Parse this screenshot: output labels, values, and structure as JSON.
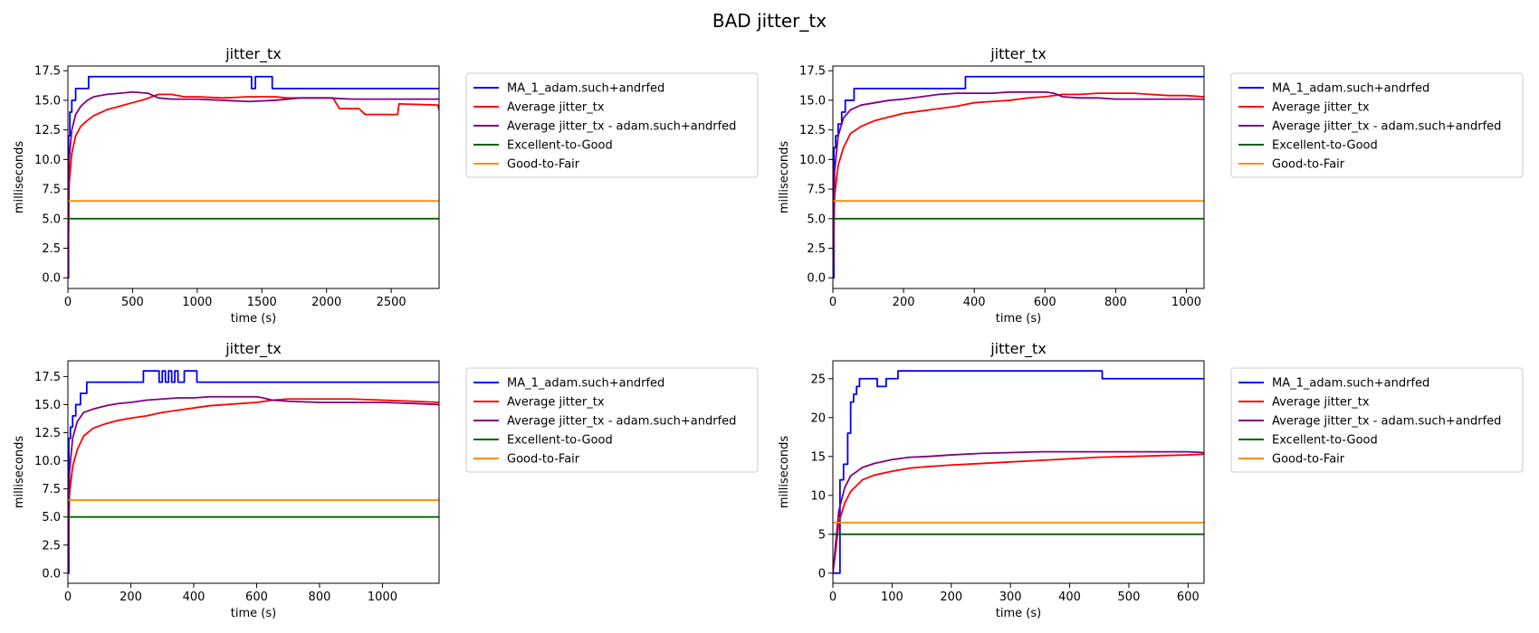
{
  "figure": {
    "title": "BAD jitter_tx"
  },
  "colors": {
    "MA": "#0000ff",
    "avg": "#ff0000",
    "avg_user": "#800080",
    "excellent_good": "#006400",
    "good_fair": "#ff8c00"
  },
  "chart_data": [
    {
      "type": "line",
      "title": "jitter_tx",
      "xlabel": "time (s)",
      "ylabel": "milliseconds",
      "xlim": [
        0,
        2870
      ],
      "ylim": [
        -0.9,
        17.9
      ],
      "xticks": [
        0,
        500,
        1000,
        1500,
        2000,
        2500
      ],
      "yticks": [
        0.0,
        2.5,
        5.0,
        7.5,
        10.0,
        12.5,
        15.0,
        17.5
      ],
      "ytick_labels": [
        "0.0",
        "2.5",
        "5.0",
        "7.5",
        "10.0",
        "12.5",
        "15.0",
        "17.5"
      ],
      "legend": {
        "placement": "outside-right"
      },
      "series": [
        {
          "name": "MA_1_adam.such+andrfed",
          "color": "#0000ff",
          "step": true,
          "x": [
            0,
            5,
            15,
            30,
            60,
            160,
            1420,
            1450,
            1580,
            1600,
            2870
          ],
          "y": [
            0,
            12,
            14,
            15,
            16,
            17,
            16,
            17,
            16,
            16,
            16
          ]
        },
        {
          "name": "Average jitter_tx",
          "color": "#ff0000",
          "x": [
            0,
            10,
            30,
            60,
            100,
            150,
            200,
            300,
            400,
            500,
            600,
            700,
            800,
            900,
            1000,
            1200,
            1400,
            1600,
            1700,
            1800,
            1900,
            2050,
            2100,
            2250,
            2300,
            2550,
            2560,
            2860,
            2870
          ],
          "y": [
            0,
            8,
            10.5,
            12,
            12.8,
            13.3,
            13.7,
            14.2,
            14.5,
            14.8,
            15.1,
            15.5,
            15.5,
            15.3,
            15.3,
            15.2,
            15.3,
            15.3,
            15.2,
            15.2,
            15.2,
            15.2,
            14.3,
            14.3,
            13.8,
            13.8,
            14.7,
            14.6,
            14.2
          ]
        },
        {
          "name": "Average jitter_tx - adam.such+andrfed",
          "color": "#800080",
          "x": [
            0,
            10,
            30,
            60,
            100,
            150,
            200,
            300,
            400,
            500,
            620,
            700,
            800,
            1000,
            1200,
            1400,
            1600,
            1800,
            2000,
            2200,
            2400,
            2600,
            2870
          ],
          "y": [
            0,
            10,
            12.5,
            13.8,
            14.5,
            15.0,
            15.3,
            15.5,
            15.6,
            15.7,
            15.6,
            15.2,
            15.1,
            15.1,
            15.0,
            14.9,
            15.0,
            15.2,
            15.2,
            15.1,
            15.1,
            15.1,
            15.1
          ]
        },
        {
          "name": "Excellent-to-Good",
          "color": "#006400",
          "x": [
            0,
            2870
          ],
          "y": [
            5,
            5
          ]
        },
        {
          "name": "Good-to-Fair",
          "color": "#ff8c00",
          "x": [
            0,
            2870
          ],
          "y": [
            6.5,
            6.5
          ]
        }
      ]
    },
    {
      "type": "line",
      "title": "jitter_tx",
      "xlabel": "time (s)",
      "ylabel": "milliseconds",
      "xlim": [
        0,
        1050
      ],
      "ylim": [
        -0.9,
        17.9
      ],
      "xticks": [
        0,
        200,
        400,
        600,
        800,
        1000
      ],
      "yticks": [
        0.0,
        2.5,
        5.0,
        7.5,
        10.0,
        12.5,
        15.0,
        17.5
      ],
      "ytick_labels": [
        "0.0",
        "2.5",
        "5.0",
        "7.5",
        "10.0",
        "12.5",
        "15.0",
        "17.5"
      ],
      "legend": {
        "placement": "outside-right"
      },
      "series": [
        {
          "name": "MA_1_adam.such+andrfed",
          "color": "#0000ff",
          "step": true,
          "x": [
            0,
            3,
            8,
            15,
            25,
            35,
            60,
            375,
            1050
          ],
          "y": [
            0,
            11,
            12,
            13,
            14,
            15,
            16,
            17,
            17
          ]
        },
        {
          "name": "Average jitter_tx",
          "color": "#ff0000",
          "x": [
            0,
            5,
            15,
            30,
            50,
            80,
            120,
            160,
            200,
            250,
            300,
            350,
            400,
            450,
            500,
            550,
            600,
            650,
            700,
            750,
            800,
            850,
            900,
            950,
            1000,
            1050
          ],
          "y": [
            0,
            7,
            9.5,
            11,
            12.2,
            12.8,
            13.3,
            13.6,
            13.9,
            14.1,
            14.3,
            14.5,
            14.8,
            14.9,
            15.0,
            15.2,
            15.3,
            15.5,
            15.5,
            15.6,
            15.6,
            15.6,
            15.5,
            15.4,
            15.4,
            15.3
          ]
        },
        {
          "name": "Average jitter_tx - adam.such+andrfed",
          "color": "#800080",
          "x": [
            0,
            5,
            15,
            30,
            50,
            80,
            120,
            160,
            200,
            250,
            300,
            350,
            400,
            450,
            500,
            550,
            600,
            625,
            650,
            700,
            750,
            800,
            900,
            1000,
            1050
          ],
          "y": [
            0,
            9,
            12,
            13.5,
            14.2,
            14.6,
            14.8,
            15.0,
            15.1,
            15.3,
            15.5,
            15.6,
            15.6,
            15.6,
            15.7,
            15.7,
            15.7,
            15.6,
            15.3,
            15.2,
            15.2,
            15.1,
            15.1,
            15.1,
            15.1
          ]
        },
        {
          "name": "Excellent-to-Good",
          "color": "#006400",
          "x": [
            0,
            1050
          ],
          "y": [
            5,
            5
          ]
        },
        {
          "name": "Good-to-Fair",
          "color": "#ff8c00",
          "x": [
            0,
            1050
          ],
          "y": [
            6.5,
            6.5
          ]
        }
      ]
    },
    {
      "type": "line",
      "title": "jitter_tx",
      "xlabel": "time (s)",
      "ylabel": "milliseconds",
      "xlim": [
        0,
        1180
      ],
      "ylim": [
        -0.9,
        18.9
      ],
      "xticks": [
        0,
        200,
        400,
        600,
        800,
        1000
      ],
      "yticks": [
        0.0,
        2.5,
        5.0,
        7.5,
        10.0,
        12.5,
        15.0,
        17.5
      ],
      "ytick_labels": [
        "0.0",
        "2.5",
        "5.0",
        "7.5",
        "10.0",
        "12.5",
        "15.0",
        "17.5"
      ],
      "legend": {
        "placement": "outside-right"
      },
      "series": [
        {
          "name": "MA_1_adam.such+andrfed",
          "color": "#0000ff",
          "step": true,
          "x": [
            0,
            3,
            8,
            15,
            25,
            40,
            60,
            240,
            290,
            300,
            310,
            320,
            330,
            340,
            350,
            360,
            370,
            400,
            410,
            1180
          ],
          "y": [
            0,
            12,
            13,
            14,
            15,
            16,
            17,
            18,
            17,
            18,
            17,
            18,
            17,
            18,
            17,
            17,
            18,
            18,
            17,
            17
          ]
        },
        {
          "name": "Average jitter_tx",
          "color": "#ff0000",
          "x": [
            0,
            5,
            15,
            30,
            50,
            80,
            120,
            160,
            200,
            250,
            300,
            350,
            400,
            450,
            500,
            550,
            600,
            650,
            700,
            800,
            900,
            1000,
            1100,
            1180
          ],
          "y": [
            0,
            7,
            9.5,
            11,
            12.2,
            12.9,
            13.3,
            13.6,
            13.8,
            14.0,
            14.3,
            14.5,
            14.7,
            14.9,
            15.0,
            15.1,
            15.2,
            15.4,
            15.5,
            15.5,
            15.5,
            15.4,
            15.3,
            15.2
          ]
        },
        {
          "name": "Average jitter_tx - adam.such+andrfed",
          "color": "#800080",
          "x": [
            0,
            5,
            15,
            30,
            50,
            80,
            120,
            160,
            200,
            250,
            300,
            350,
            400,
            450,
            500,
            550,
            600,
            620,
            650,
            700,
            800,
            900,
            1000,
            1100,
            1180
          ],
          "y": [
            0,
            9,
            12,
            13.5,
            14.3,
            14.6,
            14.9,
            15.1,
            15.2,
            15.4,
            15.5,
            15.6,
            15.6,
            15.7,
            15.7,
            15.7,
            15.7,
            15.6,
            15.4,
            15.3,
            15.2,
            15.2,
            15.2,
            15.1,
            15.0
          ]
        },
        {
          "name": "Excellent-to-Good",
          "color": "#006400",
          "x": [
            0,
            1180
          ],
          "y": [
            5,
            5
          ]
        },
        {
          "name": "Good-to-Fair",
          "color": "#ff8c00",
          "x": [
            0,
            1180
          ],
          "y": [
            6.5,
            6.5
          ]
        }
      ]
    },
    {
      "type": "line",
      "title": "jitter_tx",
      "xlabel": "time (s)",
      "ylabel": "milliseconds",
      "xlim": [
        0,
        627
      ],
      "ylim": [
        -1.3,
        27.3
      ],
      "xticks": [
        0,
        100,
        200,
        300,
        400,
        500,
        600
      ],
      "yticks": [
        0,
        5,
        10,
        15,
        20,
        25
      ],
      "ytick_labels": [
        "0",
        "5",
        "10",
        "15",
        "20",
        "25"
      ],
      "legend": {
        "placement": "outside-right"
      },
      "series": [
        {
          "name": "MA_1_adam.such+andrfed",
          "color": "#0000ff",
          "step": true,
          "x": [
            0,
            8,
            12,
            18,
            25,
            30,
            35,
            40,
            45,
            50,
            75,
            90,
            100,
            110,
            450,
            455,
            627
          ],
          "y": [
            0,
            0,
            12,
            14,
            18,
            22,
            23,
            24,
            25,
            25,
            24,
            25,
            25,
            26,
            26,
            25,
            25
          ]
        },
        {
          "name": "Average jitter_tx",
          "color": "#ff0000",
          "x": [
            0,
            5,
            10,
            20,
            30,
            50,
            70,
            100,
            130,
            160,
            200,
            250,
            300,
            350,
            400,
            450,
            500,
            550,
            600,
            627
          ],
          "y": [
            0,
            3,
            6.5,
            9,
            10.5,
            12,
            12.6,
            13.1,
            13.5,
            13.7,
            13.9,
            14.1,
            14.3,
            14.5,
            14.7,
            14.9,
            15.0,
            15.1,
            15.2,
            15.3
          ]
        },
        {
          "name": "Average jitter_tx - adam.such+andrfed",
          "color": "#800080",
          "x": [
            0,
            5,
            10,
            20,
            30,
            50,
            70,
            100,
            130,
            160,
            200,
            250,
            300,
            350,
            400,
            450,
            500,
            550,
            600,
            627
          ],
          "y": [
            0,
            4,
            8,
            11,
            12.5,
            13.6,
            14.1,
            14.6,
            14.9,
            15.0,
            15.2,
            15.4,
            15.5,
            15.6,
            15.6,
            15.6,
            15.6,
            15.6,
            15.6,
            15.5
          ]
        },
        {
          "name": "Excellent-to-Good",
          "color": "#006400",
          "x": [
            0,
            627
          ],
          "y": [
            5,
            5
          ]
        },
        {
          "name": "Good-to-Fair",
          "color": "#ff8c00",
          "x": [
            0,
            627
          ],
          "y": [
            6.5,
            6.5
          ]
        }
      ]
    }
  ]
}
